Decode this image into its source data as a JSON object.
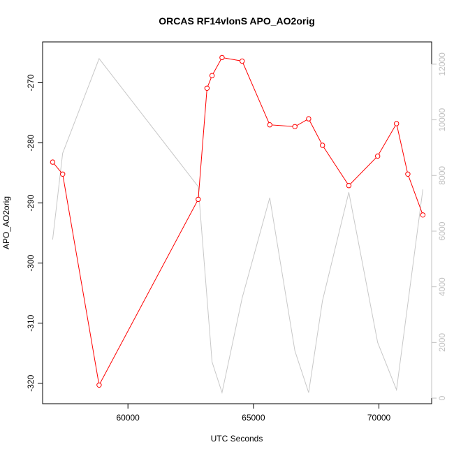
{
  "chart_data": {
    "type": "line",
    "title": "ORCAS RF14vlonS APO_AO2orig",
    "xlabel": "UTC Seconds",
    "ylabel": "APO_AO2orig",
    "xlim": [
      56600,
      72100
    ],
    "ylim": [
      -323.4,
      -263.2
    ],
    "y2lim": [
      -200,
      12800
    ],
    "x_ticks": [
      60000,
      65000,
      70000
    ],
    "y_ticks": [
      -320,
      -310,
      -300,
      -290,
      -280,
      -270
    ],
    "y2_ticks": [
      0,
      2000,
      4000,
      6000,
      8000,
      10000,
      12000
    ],
    "grid": false,
    "series": [
      {
        "role": "primary",
        "axis": "left",
        "color": "#ff0000",
        "marker": "open-circle",
        "x": [
          57000,
          57400,
          58850,
          62800,
          63150,
          63350,
          63750,
          64550,
          65650,
          66650,
          67200,
          67750,
          68800,
          69950,
          70700,
          71150,
          71750
        ],
        "y": [
          -283.2,
          -285.2,
          -320.3,
          -289.4,
          -270.9,
          -268.8,
          -265.8,
          -266.4,
          -277.0,
          -277.3,
          -276.0,
          -280.4,
          -287.1,
          -282.2,
          -276.8,
          -285.2,
          -292.0
        ]
      },
      {
        "role": "secondary",
        "axis": "right",
        "color": "#c8c8c8",
        "marker": "none",
        "x": [
          57000,
          57400,
          58850,
          62800,
          63350,
          63750,
          64550,
          65650,
          66650,
          67200,
          67750,
          68800,
          69950,
          70700,
          71750
        ],
        "y": [
          5700,
          8800,
          12200,
          7600,
          1300,
          200,
          3600,
          7200,
          1700,
          200,
          3500,
          7400,
          2000,
          300,
          7500
        ]
      }
    ]
  }
}
